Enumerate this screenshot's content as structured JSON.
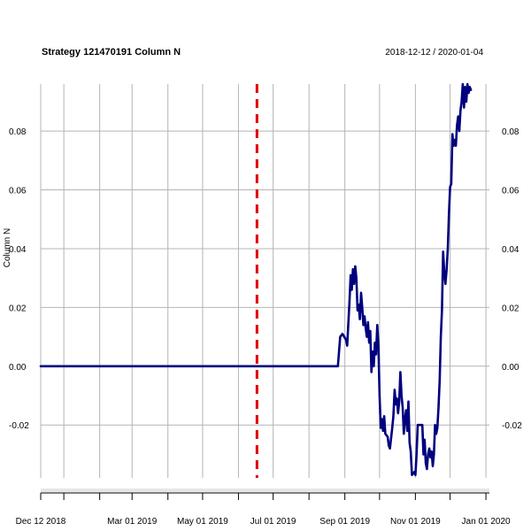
{
  "chart_data": {
    "type": "line",
    "title": "Strategy 121470191 Column N",
    "date_range": "2018-12-12 / 2020-01-04",
    "ylabel": "Column N",
    "xlabel": "",
    "x_start": "2018-12-12",
    "x_end": "2020-01-04",
    "ylim": [
      -0.038,
      0.096
    ],
    "y_ticks": [
      -0.02,
      0.0,
      0.02,
      0.04,
      0.06,
      0.08
    ],
    "y_tick_labels": [
      "-0.02",
      "0.00",
      "0.02",
      "0.04",
      "0.06",
      "0.08"
    ],
    "x_ticks": [
      {
        "date": "2018-12-12",
        "label": "Dec 12 2018"
      },
      {
        "date": "2019-03-01",
        "label": "Mar 01 2019"
      },
      {
        "date": "2019-05-01",
        "label": "May 01 2019"
      },
      {
        "date": "2019-07-01",
        "label": "Jul 01 2019"
      },
      {
        "date": "2019-09-01",
        "label": "Sep 01 2019"
      },
      {
        "date": "2019-11-01",
        "label": "Nov 01 2019"
      },
      {
        "date": "2020-01-01",
        "label": "Jan 01 2020"
      }
    ],
    "x_gridlines": [
      "2018-12-12",
      "2019-01-01",
      "2019-02-01",
      "2019-03-01",
      "2019-04-01",
      "2019-05-01",
      "2019-06-01",
      "2019-07-01",
      "2019-08-01",
      "2019-09-01",
      "2019-10-01",
      "2019-11-01",
      "2019-12-01",
      "2020-01-01"
    ],
    "vline": {
      "date": "2019-06-17",
      "color": "#e00000",
      "style": "dashed"
    },
    "grid": true,
    "line_color": "#00007f",
    "series": [
      {
        "points": [
          [
            "2018-12-12",
            0.0
          ],
          [
            "2019-08-26",
            0.0
          ],
          [
            "2019-08-28",
            0.01
          ],
          [
            "2019-08-30",
            0.011
          ],
          [
            "2019-09-02",
            0.009
          ],
          [
            "2019-09-03",
            0.007
          ],
          [
            "2019-09-05",
            0.022
          ],
          [
            "2019-09-06",
            0.031
          ],
          [
            "2019-09-07",
            0.026
          ],
          [
            "2019-09-08",
            0.033
          ],
          [
            "2019-09-09",
            0.028
          ],
          [
            "2019-09-10",
            0.034
          ],
          [
            "2019-09-11",
            0.03
          ],
          [
            "2019-09-12",
            0.019
          ],
          [
            "2019-09-13",
            0.021
          ],
          [
            "2019-09-14",
            0.016
          ],
          [
            "2019-09-15",
            0.025
          ],
          [
            "2019-09-16",
            0.02
          ],
          [
            "2019-09-17",
            0.014
          ],
          [
            "2019-09-18",
            0.017
          ],
          [
            "2019-09-19",
            0.013
          ],
          [
            "2019-09-20",
            0.01
          ],
          [
            "2019-09-21",
            0.015
          ],
          [
            "2019-09-22",
            0.008
          ],
          [
            "2019-09-23",
            0.012
          ],
          [
            "2019-09-24",
            -0.002
          ],
          [
            "2019-09-25",
            0.005
          ],
          [
            "2019-09-26",
            0.0
          ],
          [
            "2019-09-27",
            0.008
          ],
          [
            "2019-09-28",
            0.004
          ],
          [
            "2019-09-29",
            0.014
          ],
          [
            "2019-09-30",
            0.007
          ],
          [
            "2019-10-01",
            -0.01
          ],
          [
            "2019-10-02",
            -0.021
          ],
          [
            "2019-10-03",
            -0.018
          ],
          [
            "2019-10-04",
            -0.022
          ],
          [
            "2019-10-05",
            -0.017
          ],
          [
            "2019-10-06",
            -0.023
          ],
          [
            "2019-10-08",
            -0.024
          ],
          [
            "2019-10-09",
            -0.027
          ],
          [
            "2019-10-10",
            -0.028
          ],
          [
            "2019-10-12",
            -0.021
          ],
          [
            "2019-10-13",
            -0.017
          ],
          [
            "2019-10-14",
            -0.008
          ],
          [
            "2019-10-15",
            -0.013
          ],
          [
            "2019-10-16",
            -0.011
          ],
          [
            "2019-10-17",
            -0.016
          ],
          [
            "2019-10-18",
            -0.012
          ],
          [
            "2019-10-19",
            -0.002
          ],
          [
            "2019-10-20",
            -0.01
          ],
          [
            "2019-10-21",
            -0.014
          ],
          [
            "2019-10-22",
            -0.023
          ],
          [
            "2019-10-23",
            -0.018
          ],
          [
            "2019-10-24",
            -0.015
          ],
          [
            "2019-10-25",
            -0.022
          ],
          [
            "2019-10-26",
            -0.012
          ],
          [
            "2019-10-27",
            -0.026
          ],
          [
            "2019-10-28",
            -0.029
          ],
          [
            "2019-10-29",
            -0.037
          ],
          [
            "2019-10-31",
            -0.036
          ],
          [
            "2019-11-01",
            -0.037
          ],
          [
            "2019-11-02",
            -0.03
          ],
          [
            "2019-11-03",
            -0.02
          ],
          [
            "2019-11-07",
            -0.02
          ],
          [
            "2019-11-08",
            -0.03
          ],
          [
            "2019-11-09",
            -0.025
          ],
          [
            "2019-11-10",
            -0.033
          ],
          [
            "2019-11-11",
            -0.035
          ],
          [
            "2019-11-12",
            -0.03
          ],
          [
            "2019-11-13",
            -0.028
          ],
          [
            "2019-11-14",
            -0.031
          ],
          [
            "2019-11-15",
            -0.029
          ],
          [
            "2019-11-16",
            -0.034
          ],
          [
            "2019-11-17",
            -0.03
          ],
          [
            "2019-11-18",
            -0.02
          ],
          [
            "2019-11-19",
            -0.023
          ],
          [
            "2019-11-20",
            -0.021
          ],
          [
            "2019-11-21",
            -0.014
          ],
          [
            "2019-11-22",
            -0.005
          ],
          [
            "2019-11-23",
            0.01
          ],
          [
            "2019-11-24",
            0.019
          ],
          [
            "2019-11-25",
            0.039
          ],
          [
            "2019-11-26",
            0.032
          ],
          [
            "2019-11-27",
            0.028
          ],
          [
            "2019-11-28",
            0.033
          ],
          [
            "2019-11-29",
            0.04
          ],
          [
            "2019-11-30",
            0.052
          ],
          [
            "2019-12-01",
            0.061
          ],
          [
            "2019-12-02",
            0.062
          ],
          [
            "2019-12-03",
            0.079
          ],
          [
            "2019-12-04",
            0.075
          ],
          [
            "2019-12-05",
            0.077
          ],
          [
            "2019-12-06",
            0.075
          ],
          [
            "2019-12-07",
            0.082
          ],
          [
            "2019-12-08",
            0.085
          ],
          [
            "2019-12-09",
            0.08
          ],
          [
            "2019-12-10",
            0.087
          ],
          [
            "2019-12-11",
            0.09
          ],
          [
            "2019-12-12",
            0.096
          ],
          [
            "2019-12-13",
            0.088
          ],
          [
            "2019-12-14",
            0.095
          ],
          [
            "2019-12-15",
            0.09
          ],
          [
            "2019-12-16",
            0.096
          ],
          [
            "2019-12-17",
            0.093
          ],
          [
            "2019-12-18",
            0.095
          ],
          [
            "2019-12-19",
            0.094
          ]
        ]
      }
    ]
  }
}
